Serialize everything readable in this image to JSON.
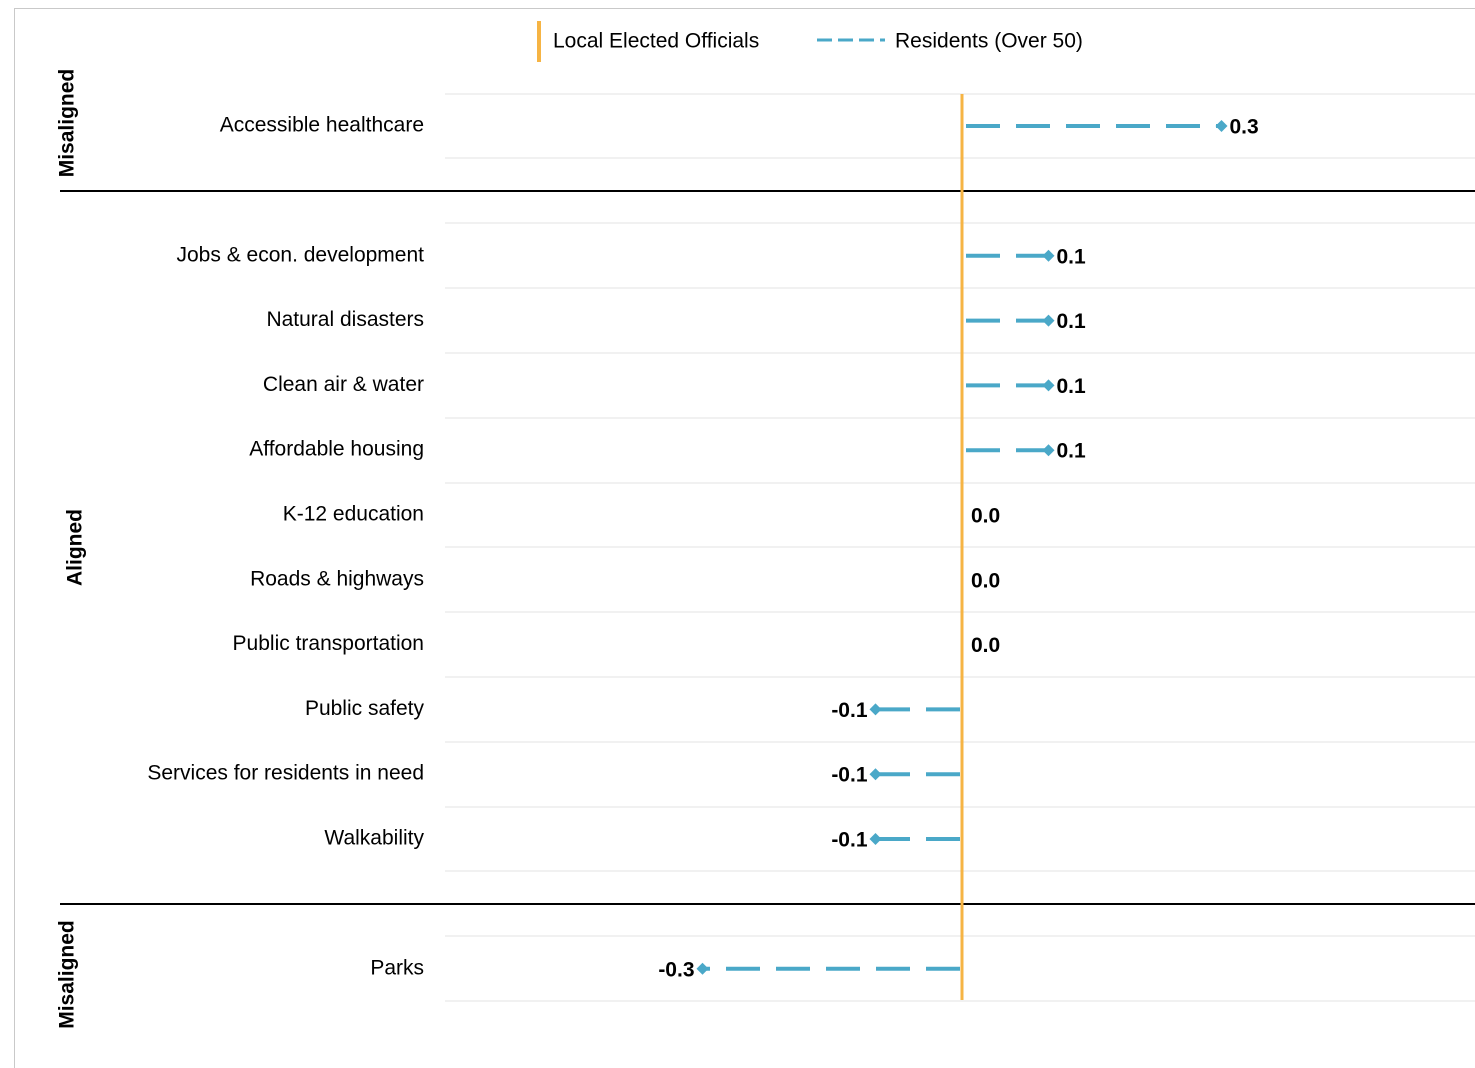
{
  "chart_data": {
    "type": "dot-plot",
    "title": "",
    "legend": {
      "placement": "top-center",
      "items": [
        {
          "label": "Local Elected Officials",
          "style": "solid-vertical-line",
          "color": "#f6b444"
        },
        {
          "label": "Residents (Over 50)",
          "style": "dashed-line-with-diamond",
          "color": "#4aa8c8"
        }
      ]
    },
    "groups": [
      {
        "label": "Misaligned",
        "categories": [
          "Accessible healthcare"
        ]
      },
      {
        "label": "Aligned",
        "categories": [
          "Jobs & econ. development",
          "Natural disasters",
          "Clean air & water",
          "Affordable housing",
          "K-12 education",
          "Roads & highways",
          "Public transportation",
          "Public safety",
          "Services for residents in need",
          "Walkability"
        ]
      },
      {
        "label": "Misaligned",
        "categories": [
          "Parks"
        ]
      }
    ],
    "series": [
      {
        "name": "Residents (Over 50)",
        "values": [
          0.3,
          0.1,
          0.1,
          0.1,
          0.1,
          0.0,
          0.0,
          0.0,
          -0.1,
          -0.1,
          -0.1,
          -0.3
        ],
        "labels": [
          "0.3",
          "0.1",
          "0.1",
          "0.1",
          "0.1",
          "0.0",
          "0.0",
          "0.0",
          "-0.1",
          "-0.1",
          "-0.1",
          "-0.3"
        ]
      }
    ],
    "baseline": {
      "series": "Local Elected Officials",
      "value": 0
    },
    "xlim": [
      -0.6,
      0.6
    ],
    "grid": "horizontal",
    "colors": {
      "officials": "#f6b444",
      "residents": "#4aa8c8",
      "gridline": "#e3e3e3",
      "separator": "#000000"
    }
  }
}
